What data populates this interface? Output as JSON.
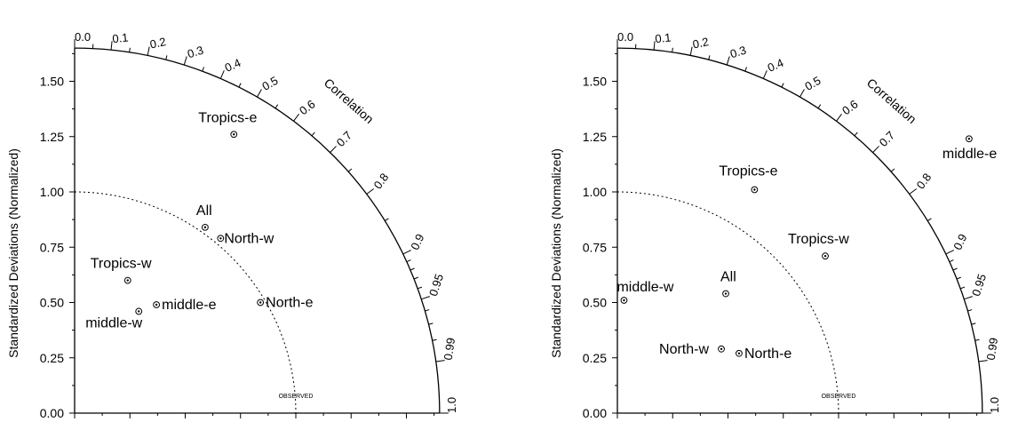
{
  "chart_data": [
    {
      "type": "scatter",
      "subtype": "taylor-diagram",
      "ylabel": "Standardized Deviations (Normalized)",
      "arc_label": "Correlation",
      "reference_label": "OBSERVED",
      "reference_std": 1.0,
      "std_max": 1.65,
      "std_ticks": [
        "0.00",
        "0.25",
        "0.50",
        "0.75",
        "1.00",
        "1.25",
        "1.50"
      ],
      "corr_major_ticks": [
        "0.0",
        "0.1",
        "0.2",
        "0.3",
        "0.4",
        "0.5",
        "0.6",
        "0.7",
        "0.8",
        "0.9",
        "0.95",
        "0.99",
        "1.0"
      ],
      "points": [
        {
          "label": "Tropics-e",
          "x": 0.72,
          "y": 1.26
        },
        {
          "label": "All",
          "x": 0.59,
          "y": 0.84
        },
        {
          "label": "North-w",
          "x": 0.66,
          "y": 0.79
        },
        {
          "label": "Tropics-w",
          "x": 0.24,
          "y": 0.6
        },
        {
          "label": "middle-e",
          "x": 0.37,
          "y": 0.49
        },
        {
          "label": "middle-w",
          "x": 0.29,
          "y": 0.46
        },
        {
          "label": "North-e",
          "x": 0.84,
          "y": 0.5
        }
      ]
    },
    {
      "type": "scatter",
      "subtype": "taylor-diagram",
      "ylabel": "Standardized Deviations (Normalized)",
      "arc_label": "Correlation",
      "reference_label": "OBSERVED",
      "reference_std": 1.0,
      "std_max": 1.65,
      "std_ticks": [
        "0.00",
        "0.25",
        "0.50",
        "0.75",
        "1.00",
        "1.25",
        "1.50"
      ],
      "corr_major_ticks": [
        "0.0",
        "0.1",
        "0.2",
        "0.3",
        "0.4",
        "0.5",
        "0.6",
        "0.7",
        "0.8",
        "0.9",
        "0.95",
        "0.99",
        "1.0"
      ],
      "points": [
        {
          "label": "middle-e",
          "x": 1.59,
          "y": 1.24
        },
        {
          "label": "Tropics-e",
          "x": 0.62,
          "y": 1.01
        },
        {
          "label": "Tropics-w",
          "x": 0.94,
          "y": 0.71
        },
        {
          "label": "middle-w",
          "x": 0.03,
          "y": 0.51
        },
        {
          "label": "All",
          "x": 0.49,
          "y": 0.54
        },
        {
          "label": "North-w",
          "x": 0.47,
          "y": 0.29
        },
        {
          "label": "North-e",
          "x": 0.55,
          "y": 0.27
        }
      ]
    }
  ]
}
